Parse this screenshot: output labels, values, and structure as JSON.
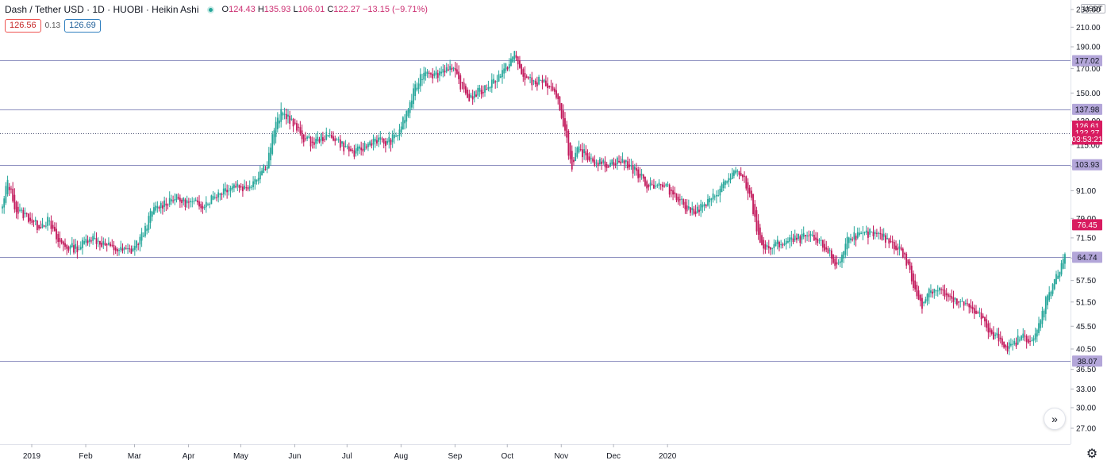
{
  "header": {
    "title": "Dash / Tether USD · 1D · HUOBI · Heikin Ashi",
    "ohlc": {
      "o_label": "O",
      "o": "124.43",
      "h_label": "H",
      "h": "135.93",
      "l_label": "L",
      "l": "106.01",
      "c_label": "C",
      "c": "122.27",
      "change": "−13.15 (−9.71%)"
    },
    "sell_price": "126.56",
    "spread": "0.13",
    "buy_price": "126.69",
    "currency_button": "USDT"
  },
  "colors": {
    "up": "#26a69a",
    "down": "#c2185b",
    "hline": "#8c8fbf",
    "label_purple": "#b3a6d9",
    "label_red": "#d81b60",
    "axis_text": "#131722"
  },
  "icons": {
    "scroll": "chevron-double-right-icon",
    "settings": "gear-icon"
  },
  "chart_data": {
    "type": "candlestick",
    "style": "Heikin Ashi",
    "scale": "log",
    "grid": false,
    "y_ticks": [
      "27.00",
      "30.00",
      "33.00",
      "36.50",
      "40.50",
      "45.50",
      "51.50",
      "57.50",
      "64.50",
      "71.50",
      "79.00",
      "91.00",
      "103.00",
      "115.00",
      "130.00",
      "150.00",
      "170.00",
      "190.00",
      "210.00",
      "230.00"
    ],
    "x_ticks": [
      "2019",
      "Feb",
      "Mar",
      "Apr",
      "May",
      "Jun",
      "Jul",
      "Aug",
      "Sep",
      "Oct",
      "Nov",
      "Dec",
      "2020"
    ],
    "horizontal_lines": [
      {
        "value": 177.02,
        "label": "177.02",
        "style": "solid"
      },
      {
        "value": 137.98,
        "label": "137.98",
        "style": "solid"
      },
      {
        "value": 103.93,
        "label": "103.93",
        "style": "solid"
      },
      {
        "value": 64.74,
        "label": "64.74",
        "style": "solid"
      },
      {
        "value": 38.07,
        "label": "38.07",
        "style": "solid"
      },
      {
        "value": 122.27,
        "label": "",
        "style": "dotted"
      }
    ],
    "price_labels": [
      {
        "value": 126.61,
        "label": "126.61",
        "kind": "red"
      },
      {
        "value": 122.27,
        "label": "122.27",
        "kind": "red"
      },
      {
        "value": 118.5,
        "label": "03:53:21",
        "kind": "red"
      },
      {
        "value": 76.45,
        "label": "76.45",
        "kind": "red"
      }
    ],
    "price_anchors": [
      [
        0,
        83
      ],
      [
        3,
        96
      ],
      [
        8,
        82
      ],
      [
        14,
        80
      ],
      [
        20,
        76
      ],
      [
        26,
        78
      ],
      [
        32,
        70
      ],
      [
        38,
        68
      ],
      [
        44,
        68
      ],
      [
        50,
        72
      ],
      [
        56,
        70
      ],
      [
        62,
        68
      ],
      [
        68,
        67
      ],
      [
        74,
        67
      ],
      [
        80,
        72
      ],
      [
        86,
        82
      ],
      [
        92,
        85
      ],
      [
        98,
        88
      ],
      [
        104,
        86
      ],
      [
        110,
        85
      ],
      [
        116,
        85
      ],
      [
        122,
        89
      ],
      [
        128,
        92
      ],
      [
        134,
        94
      ],
      [
        140,
        92
      ],
      [
        146,
        98
      ],
      [
        152,
        105
      ],
      [
        156,
        125
      ],
      [
        160,
        135
      ],
      [
        164,
        133
      ],
      [
        168,
        126
      ],
      [
        172,
        120
      ],
      [
        178,
        116
      ],
      [
        184,
        120
      ],
      [
        190,
        120
      ],
      [
        196,
        114
      ],
      [
        202,
        110
      ],
      [
        208,
        114
      ],
      [
        214,
        119
      ],
      [
        220,
        116
      ],
      [
        226,
        120
      ],
      [
        232,
        135
      ],
      [
        236,
        150
      ],
      [
        240,
        163
      ],
      [
        244,
        170
      ],
      [
        248,
        164
      ],
      [
        252,
        168
      ],
      [
        256,
        172
      ],
      [
        260,
        165
      ],
      [
        264,
        154
      ],
      [
        268,
        146
      ],
      [
        272,
        150
      ],
      [
        276,
        152
      ],
      [
        282,
        160
      ],
      [
        288,
        168
      ],
      [
        292,
        178
      ],
      [
        294,
        183
      ],
      [
        298,
        165
      ],
      [
        304,
        158
      ],
      [
        310,
        160
      ],
      [
        316,
        150
      ],
      [
        320,
        140
      ],
      [
        324,
        118
      ],
      [
        327,
        100
      ],
      [
        330,
        112
      ],
      [
        334,
        110
      ],
      [
        340,
        106
      ],
      [
        346,
        104
      ],
      [
        352,
        106
      ],
      [
        358,
        105
      ],
      [
        364,
        100
      ],
      [
        370,
        94
      ],
      [
        376,
        94
      ],
      [
        382,
        92
      ],
      [
        388,
        88
      ],
      [
        394,
        82
      ],
      [
        400,
        83
      ],
      [
        406,
        86
      ],
      [
        410,
        90
      ],
      [
        416,
        96
      ],
      [
        420,
        100
      ],
      [
        426,
        96
      ],
      [
        430,
        86
      ],
      [
        434,
        72
      ],
      [
        438,
        67
      ],
      [
        444,
        69
      ],
      [
        450,
        70
      ],
      [
        456,
        71
      ],
      [
        462,
        72
      ],
      [
        468,
        70
      ],
      [
        474,
        67
      ],
      [
        478,
        62
      ],
      [
        482,
        65
      ],
      [
        486,
        73
      ],
      [
        492,
        72
      ],
      [
        498,
        73
      ],
      [
        504,
        72
      ],
      [
        510,
        70
      ],
      [
        516,
        67
      ],
      [
        520,
        62
      ],
      [
        524,
        54
      ],
      [
        528,
        51
      ],
      [
        532,
        55
      ],
      [
        538,
        55
      ],
      [
        544,
        52
      ],
      [
        550,
        51
      ],
      [
        556,
        50
      ],
      [
        560,
        49
      ],
      [
        564,
        46
      ],
      [
        568,
        43
      ],
      [
        572,
        43
      ],
      [
        576,
        41
      ],
      [
        580,
        41
      ],
      [
        584,
        43
      ],
      [
        588,
        43
      ],
      [
        592,
        42
      ],
      [
        596,
        47
      ],
      [
        600,
        54
      ],
      [
        604,
        57
      ],
      [
        608,
        63
      ],
      [
        610,
        66
      ]
    ]
  }
}
